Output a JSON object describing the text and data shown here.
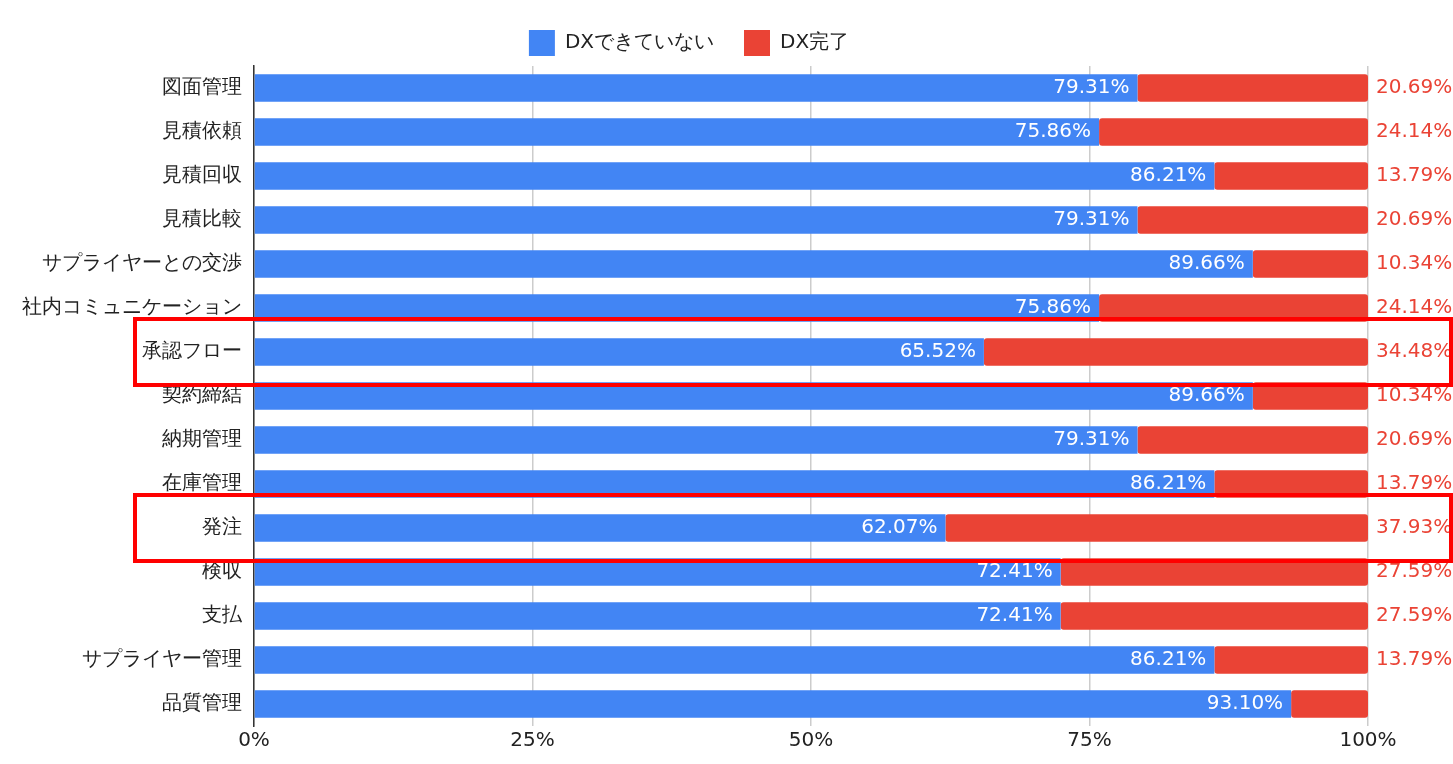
{
  "chart_data": {
    "type": "bar",
    "orientation": "horizontal",
    "stacked": true,
    "legend": "top",
    "grid": "x",
    "categories": [
      "図面管理",
      "見積依頼",
      "見積回収",
      "見積比較",
      "サプライヤーとの交渉",
      "社内コミュニケーション",
      "承認フロー",
      "契約締結",
      "納期管理",
      "在庫管理",
      "発注",
      "検収",
      "支払",
      "サプライヤー管理",
      "品質管理"
    ],
    "xlim": [
      0,
      100
    ],
    "xticks": [
      {
        "value": 0,
        "label": "0%"
      },
      {
        "value": 25,
        "label": "25%"
      },
      {
        "value": 50,
        "label": "50%"
      },
      {
        "value": 75,
        "label": "75%"
      },
      {
        "value": 100,
        "label": "100%"
      }
    ],
    "series": [
      {
        "name": "DXできていない",
        "color": "#4285f4",
        "values": [
          79.31,
          75.86,
          86.21,
          79.31,
          89.66,
          75.86,
          65.52,
          89.66,
          79.31,
          86.21,
          62.07,
          72.41,
          72.41,
          86.21,
          93.1
        ],
        "value_labels": [
          "79.31%",
          "75.86%",
          "86.21%",
          "79.31%",
          "89.66%",
          "75.86%",
          "65.52%",
          "89.66%",
          "79.31%",
          "86.21%",
          "62.07%",
          "72.41%",
          "72.41%",
          "86.21%",
          "93.10%"
        ]
      },
      {
        "name": "DX完了",
        "color": "#ea4335",
        "values": [
          20.69,
          24.14,
          13.79,
          20.69,
          10.34,
          24.14,
          34.48,
          10.34,
          20.69,
          13.79,
          37.93,
          27.59,
          27.59,
          13.79,
          6.9
        ],
        "value_labels": [
          "20.69%",
          "24.14%",
          "13.79%",
          "20.69%",
          "10.34%",
          "24.14%",
          "34.48%",
          "10.34%",
          "20.69%",
          "13.79%",
          "37.93%",
          "27.59%",
          "27.59%",
          "13.79%",
          null
        ]
      }
    ]
  }
}
